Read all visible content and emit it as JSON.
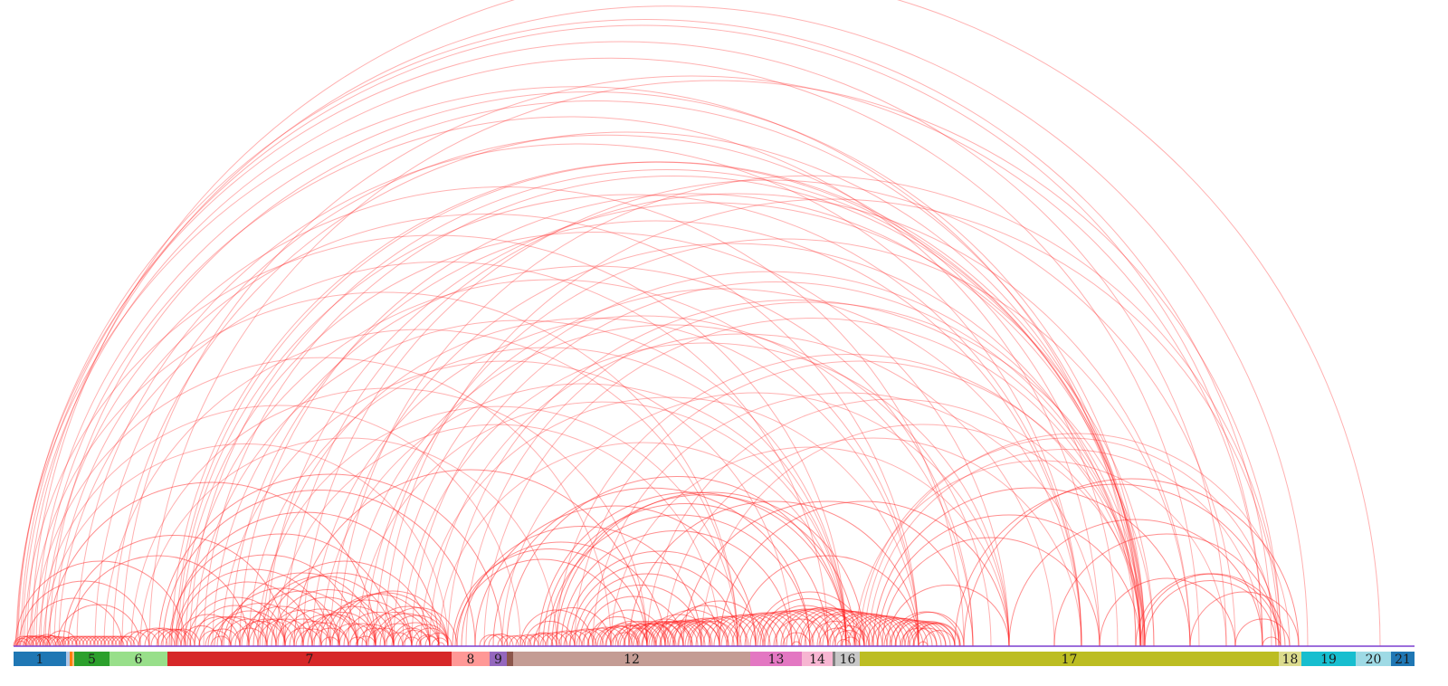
{
  "chart_data": {
    "type": "arc-diagram",
    "title": "",
    "xlabel": "",
    "ylabel": "",
    "x_range": [
      0,
      1560
    ],
    "colors": {
      "arc": "#ff2020",
      "axis_line": "#7b3fd0"
    },
    "segments": [
      {
        "label": "1",
        "start": 0,
        "end": 58,
        "color": "#1f77b4"
      },
      {
        "label": "",
        "start": 58,
        "end": 62,
        "color": "#aec7e8"
      },
      {
        "label": "",
        "start": 62,
        "end": 65,
        "color": "#ff7f0e"
      },
      {
        "label": "",
        "start": 65,
        "end": 67,
        "color": "#ffbb78"
      },
      {
        "label": "5",
        "start": 67,
        "end": 106,
        "color": "#2ca02c"
      },
      {
        "label": "6",
        "start": 106,
        "end": 170,
        "color": "#98df8a"
      },
      {
        "label": "7",
        "start": 170,
        "end": 484,
        "color": "#d62728"
      },
      {
        "label": "8",
        "start": 484,
        "end": 526,
        "color": "#ff9896"
      },
      {
        "label": "9",
        "start": 526,
        "end": 545,
        "color": "#9467bd"
      },
      {
        "label": "",
        "start": 545,
        "end": 552,
        "color": "#8c564b"
      },
      {
        "label": "12",
        "start": 552,
        "end": 814,
        "color": "#c49c94"
      },
      {
        "label": "13",
        "start": 814,
        "end": 871,
        "color": "#e377c2"
      },
      {
        "label": "14",
        "start": 871,
        "end": 905,
        "color": "#f7b6d2"
      },
      {
        "label": "",
        "start": 905,
        "end": 908,
        "color": "#7f7f7f"
      },
      {
        "label": "16",
        "start": 908,
        "end": 935,
        "color": "#c7c7c7"
      },
      {
        "label": "17",
        "start": 935,
        "end": 1398,
        "color": "#bcbd22"
      },
      {
        "label": "18",
        "start": 1398,
        "end": 1423,
        "color": "#dbdb8d"
      },
      {
        "label": "19",
        "start": 1423,
        "end": 1483,
        "color": "#17becf"
      },
      {
        "label": "20",
        "start": 1483,
        "end": 1522,
        "color": "#9edae5"
      },
      {
        "label": "21",
        "start": 1522,
        "end": 1548,
        "color": "#1f77b4"
      }
    ],
    "arcs": [
      [
        5,
        1390
      ],
      [
        8,
        1380
      ],
      [
        4,
        1340
      ],
      [
        10,
        1310
      ],
      [
        15,
        1430
      ],
      [
        20,
        1510
      ],
      [
        3,
        1240
      ],
      [
        25,
        1250
      ],
      [
        30,
        1200
      ],
      [
        40,
        1245
      ],
      [
        35,
        1050
      ],
      [
        45,
        1000
      ],
      [
        50,
        900
      ],
      [
        12,
        920
      ],
      [
        18,
        800
      ],
      [
        22,
        660
      ],
      [
        28,
        560
      ],
      [
        33,
        480
      ],
      [
        38,
        400
      ],
      [
        55,
        300
      ],
      [
        60,
        260
      ],
      [
        2,
        190
      ],
      [
        6,
        150
      ],
      [
        14,
        120
      ],
      [
        48,
        140
      ],
      [
        16,
        40
      ],
      [
        24,
        50
      ],
      [
        36,
        70
      ],
      [
        70,
        1180
      ],
      [
        90,
        1220
      ],
      [
        110,
        1246
      ],
      [
        120,
        1380
      ],
      [
        150,
        1400
      ],
      [
        100,
        800
      ],
      [
        130,
        700
      ],
      [
        140,
        600
      ],
      [
        160,
        540
      ],
      [
        165,
        510
      ],
      [
        175,
        1245
      ],
      [
        180,
        1250
      ],
      [
        182,
        1180
      ],
      [
        185,
        1100
      ],
      [
        190,
        1000
      ],
      [
        195,
        1248
      ],
      [
        200,
        920
      ],
      [
        210,
        1249
      ],
      [
        220,
        1060
      ],
      [
        230,
        860
      ],
      [
        240,
        1180
      ],
      [
        250,
        1250
      ],
      [
        260,
        920
      ],
      [
        270,
        800
      ],
      [
        275,
        1000
      ],
      [
        280,
        1260
      ],
      [
        290,
        780
      ],
      [
        300,
        1300
      ],
      [
        310,
        700
      ],
      [
        320,
        1350
      ],
      [
        330,
        1060
      ],
      [
        340,
        920
      ],
      [
        350,
        1240
      ],
      [
        360,
        1400
      ],
      [
        370,
        1080
      ],
      [
        380,
        920
      ],
      [
        390,
        1180
      ],
      [
        400,
        1300
      ],
      [
        410,
        1398
      ],
      [
        420,
        1248
      ],
      [
        430,
        1100
      ],
      [
        440,
        1245
      ],
      [
        450,
        1000
      ],
      [
        460,
        1150
      ],
      [
        470,
        920
      ],
      [
        480,
        1245
      ],
      [
        172,
        420
      ],
      [
        174,
        470
      ],
      [
        178,
        380
      ],
      [
        180,
        350
      ],
      [
        188,
        330
      ],
      [
        192,
        300
      ],
      [
        200,
        290
      ],
      [
        205,
        270
      ],
      [
        212,
        250
      ],
      [
        218,
        240
      ],
      [
        225,
        320
      ],
      [
        232,
        360
      ],
      [
        238,
        400
      ],
      [
        245,
        300
      ],
      [
        252,
        340
      ],
      [
        258,
        380
      ],
      [
        265,
        420
      ],
      [
        272,
        460
      ],
      [
        278,
        440
      ],
      [
        285,
        410
      ],
      [
        292,
        400
      ],
      [
        298,
        380
      ],
      [
        305,
        360
      ],
      [
        312,
        350
      ],
      [
        318,
        370
      ],
      [
        325,
        400
      ],
      [
        332,
        420
      ],
      [
        338,
        440
      ],
      [
        345,
        460
      ],
      [
        352,
        470
      ],
      [
        358,
        480
      ],
      [
        365,
        440
      ],
      [
        372,
        420
      ],
      [
        378,
        400
      ],
      [
        385,
        460
      ],
      [
        392,
        480
      ],
      [
        398,
        470
      ],
      [
        405,
        490
      ],
      [
        412,
        480
      ],
      [
        418,
        470
      ],
      [
        425,
        460
      ],
      [
        432,
        480
      ],
      [
        440,
        480
      ],
      [
        448,
        470
      ],
      [
        455,
        484
      ],
      [
        462,
        480
      ],
      [
        468,
        476
      ],
      [
        180,
        250
      ],
      [
        185,
        230
      ],
      [
        195,
        260
      ],
      [
        205,
        240
      ],
      [
        215,
        280
      ],
      [
        222,
        300
      ],
      [
        230,
        290
      ],
      [
        240,
        280
      ],
      [
        250,
        310
      ],
      [
        260,
        320
      ],
      [
        270,
        330
      ],
      [
        280,
        360
      ],
      [
        290,
        350
      ],
      [
        300,
        340
      ],
      [
        310,
        380
      ],
      [
        320,
        390
      ],
      [
        330,
        370
      ],
      [
        340,
        360
      ],
      [
        350,
        400
      ],
      [
        360,
        410
      ],
      [
        370,
        390
      ],
      [
        380,
        420
      ],
      [
        390,
        430
      ],
      [
        400,
        450
      ],
      [
        410,
        440
      ],
      [
        420,
        460
      ],
      [
        430,
        450
      ],
      [
        445,
        470
      ],
      [
        580,
        920
      ],
      [
        585,
        900
      ],
      [
        590,
        880
      ],
      [
        595,
        930
      ],
      [
        600,
        940
      ],
      [
        605,
        860
      ],
      [
        610,
        820
      ],
      [
        615,
        800
      ],
      [
        620,
        780
      ],
      [
        625,
        760
      ],
      [
        630,
        740
      ],
      [
        640,
        720
      ],
      [
        650,
        700
      ],
      [
        660,
        690
      ],
      [
        670,
        710
      ],
      [
        680,
        730
      ],
      [
        690,
        750
      ],
      [
        700,
        770
      ],
      [
        710,
        790
      ],
      [
        720,
        810
      ],
      [
        730,
        830
      ],
      [
        560,
        640
      ],
      [
        565,
        620
      ],
      [
        570,
        600
      ],
      [
        575,
        660
      ],
      [
        635,
        700
      ],
      [
        645,
        690
      ],
      [
        655,
        710
      ],
      [
        665,
        720
      ],
      [
        675,
        730
      ],
      [
        685,
        740
      ],
      [
        695,
        750
      ],
      [
        705,
        760
      ],
      [
        715,
        770
      ],
      [
        725,
        780
      ],
      [
        735,
        790
      ],
      [
        745,
        800
      ],
      [
        600,
        1245
      ],
      [
        620,
        1250
      ],
      [
        640,
        1200
      ],
      [
        660,
        1100
      ],
      [
        680,
        1000
      ],
      [
        700,
        1246
      ],
      [
        720,
        1180
      ],
      [
        740,
        1060
      ],
      [
        760,
        1250
      ],
      [
        780,
        1100
      ],
      [
        800,
        1000
      ],
      [
        500,
        1260
      ],
      [
        520,
        1245
      ],
      [
        540,
        1100
      ],
      [
        545,
        920
      ],
      [
        530,
        880
      ],
      [
        510,
        820
      ],
      [
        495,
        760
      ],
      [
        490,
        720
      ],
      [
        485,
        700
      ],
      [
        488,
        680
      ],
      [
        930,
        1340
      ],
      [
        935,
        1395
      ],
      [
        940,
        1410
      ],
      [
        945,
        1380
      ],
      [
        950,
        1300
      ],
      [
        955,
        1245
      ],
      [
        960,
        1200
      ],
      [
        965,
        1100
      ],
      [
        970,
        1046
      ],
      [
        975,
        1050
      ],
      [
        980,
        1020
      ],
      [
        985,
        1040
      ],
      [
        990,
        1030
      ],
      [
        995,
        1045
      ],
      [
        1000,
        1010
      ],
      [
        1005,
        1040
      ],
      [
        1040,
        1398
      ],
      [
        1050,
        1420
      ],
      [
        1100,
        1380
      ],
      [
        1150,
        1398
      ],
      [
        1200,
        1350
      ],
      [
        1240,
        1400
      ],
      [
        1245,
        1405
      ],
      [
        1250,
        1395
      ],
      [
        1300,
        1420
      ],
      [
        1350,
        1410
      ],
      [
        1380,
        1400
      ],
      [
        820,
        940
      ],
      [
        825,
        930
      ],
      [
        830,
        920
      ],
      [
        840,
        900
      ],
      [
        850,
        880
      ],
      [
        860,
        870
      ],
      [
        870,
        940
      ],
      [
        880,
        935
      ],
      [
        890,
        930
      ],
      [
        900,
        945
      ],
      [
        905,
        940
      ],
      [
        910,
        925
      ],
      [
        915,
        935
      ],
      [
        0,
        22
      ],
      [
        1,
        18
      ],
      [
        3,
        14
      ],
      [
        4,
        26
      ],
      [
        7,
        30
      ],
      [
        11,
        33
      ],
      [
        13,
        35
      ],
      [
        19,
        40
      ],
      [
        21,
        44
      ],
      [
        26,
        47
      ],
      [
        29,
        52
      ],
      [
        32,
        55
      ],
      [
        37,
        58
      ],
      [
        41,
        62
      ],
      [
        46,
        66
      ],
      [
        51,
        70
      ],
      [
        53,
        74
      ],
      [
        56,
        78
      ],
      [
        60,
        82
      ],
      [
        64,
        86
      ],
      [
        68,
        90
      ],
      [
        72,
        94
      ],
      [
        76,
        98
      ],
      [
        80,
        102
      ],
      [
        84,
        106
      ],
      [
        88,
        110
      ],
      [
        92,
        114
      ],
      [
        96,
        118
      ],
      [
        100,
        122
      ],
      [
        104,
        126
      ],
      [
        108,
        130
      ],
      [
        112,
        134
      ],
      [
        116,
        138
      ],
      [
        118,
        150
      ],
      [
        125,
        160
      ],
      [
        132,
        170
      ],
      [
        138,
        178
      ],
      [
        145,
        185
      ],
      [
        152,
        190
      ],
      [
        158,
        196
      ],
      [
        163,
        200
      ],
      [
        168,
        206
      ],
      [
        515,
        540
      ],
      [
        520,
        546
      ],
      [
        525,
        552
      ],
      [
        535,
        558
      ],
      [
        542,
        565
      ],
      [
        548,
        572
      ],
      [
        555,
        580
      ],
      [
        562,
        588
      ],
      [
        568,
        596
      ],
      [
        575,
        604
      ],
      [
        582,
        612
      ],
      [
        588,
        620
      ],
      [
        594,
        628
      ],
      [
        602,
        636
      ],
      [
        608,
        644
      ],
      [
        614,
        652
      ],
      [
        622,
        660
      ],
      [
        628,
        668
      ],
      [
        634,
        676
      ],
      [
        642,
        684
      ],
      [
        648,
        692
      ],
      [
        654,
        700
      ],
      [
        662,
        708
      ],
      [
        668,
        716
      ],
      [
        674,
        724
      ],
      [
        682,
        732
      ],
      [
        688,
        740
      ],
      [
        694,
        748
      ],
      [
        702,
        756
      ],
      [
        708,
        764
      ],
      [
        714,
        772
      ],
      [
        722,
        780
      ],
      [
        728,
        788
      ],
      [
        734,
        796
      ],
      [
        742,
        804
      ],
      [
        748,
        812
      ],
      [
        754,
        820
      ],
      [
        762,
        828
      ],
      [
        768,
        836
      ],
      [
        774,
        844
      ],
      [
        782,
        852
      ],
      [
        788,
        860
      ],
      [
        794,
        868
      ],
      [
        802,
        876
      ],
      [
        808,
        884
      ],
      [
        814,
        892
      ],
      [
        822,
        900
      ],
      [
        828,
        908
      ],
      [
        834,
        916
      ],
      [
        842,
        924
      ],
      [
        848,
        932
      ],
      [
        854,
        940
      ],
      [
        862,
        946
      ],
      [
        868,
        950
      ],
      [
        874,
        955
      ],
      [
        882,
        960
      ],
      [
        888,
        965
      ],
      [
        894,
        970
      ],
      [
        902,
        975
      ],
      [
        908,
        980
      ],
      [
        914,
        985
      ],
      [
        922,
        990
      ],
      [
        928,
        995
      ],
      [
        934,
        1000
      ],
      [
        942,
        1005
      ],
      [
        948,
        1010
      ],
      [
        954,
        1015
      ],
      [
        962,
        1020
      ],
      [
        968,
        1025
      ],
      [
        974,
        1030
      ],
      [
        982,
        1035
      ],
      [
        988,
        1040
      ],
      [
        994,
        1046
      ]
    ]
  }
}
